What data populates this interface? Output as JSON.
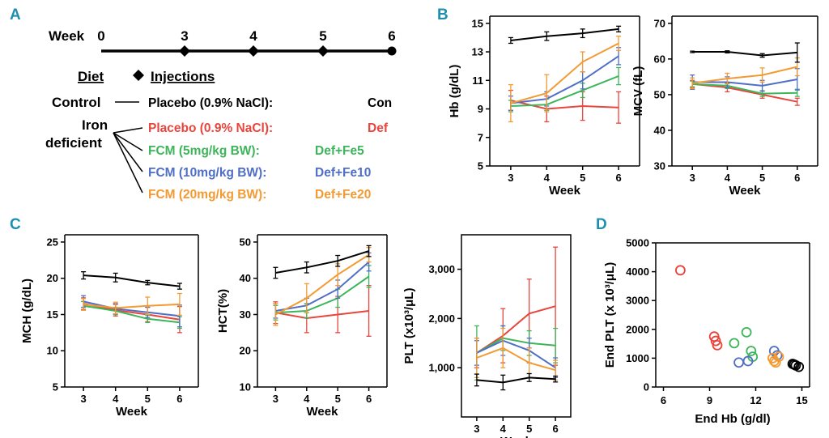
{
  "panel_labels": [
    "A",
    "B",
    "C",
    "D"
  ],
  "colors": {
    "Con": "#000000",
    "Def": "#e8453c",
    "Def+Fe5": "#3db55a",
    "Def+Fe10": "#4f6fc6",
    "Def+Fe20": "#f39a32",
    "accent": "#1f8fb0"
  },
  "timeline": {
    "week_label": "Week",
    "weeks": [
      "0",
      "3",
      "4",
      "5",
      "6"
    ],
    "diet_header": "Diet",
    "injections_header": "Injections",
    "control_label": "Control",
    "iron_label_line1": "Iron",
    "iron_label_line2": "deficient",
    "groups": [
      {
        "treatment": "Placebo (0.9% NaCl):",
        "code": "Con",
        "color": "#000000"
      },
      {
        "treatment": "Placebo (0.9% NaCl):",
        "code": "Def",
        "color": "#e8453c"
      },
      {
        "treatment": "FCM (5mg/kg BW):",
        "code": "Def+Fe5",
        "color": "#3db55a"
      },
      {
        "treatment": "FCM (10mg/kg BW):",
        "code": "Def+Fe10",
        "color": "#4f6fc6"
      },
      {
        "treatment": "FCM (20mg/kg BW):",
        "code": "Def+Fe20",
        "color": "#f39a32"
      }
    ]
  },
  "chart_data": [
    {
      "id": "hb",
      "panel": "B",
      "type": "line",
      "xlabel": "Week",
      "ylabel": "Hb (g/dL)",
      "x": [
        3,
        4,
        5,
        6
      ],
      "ylim": [
        5,
        15.5
      ],
      "yticks": [
        "5",
        "7",
        "9",
        "11",
        "13",
        "15"
      ],
      "series": [
        {
          "name": "Con",
          "values": [
            13.8,
            14.1,
            14.3,
            14.6
          ],
          "err": [
            0.2,
            0.3,
            0.3,
            0.2
          ]
        },
        {
          "name": "Def",
          "values": [
            9.6,
            9.0,
            9.2,
            9.1
          ],
          "err": [
            0.7,
            0.9,
            1.0,
            1.1
          ]
        },
        {
          "name": "Def+Fe5",
          "values": [
            9.2,
            9.3,
            10.3,
            11.3
          ],
          "err": [
            0.4,
            0.4,
            0.5,
            0.6
          ]
        },
        {
          "name": "Def+Fe10",
          "values": [
            9.4,
            9.7,
            11.0,
            12.7
          ],
          "err": [
            0.5,
            0.5,
            0.6,
            0.6
          ]
        },
        {
          "name": "Def+Fe20",
          "values": [
            9.4,
            10.1,
            12.3,
            13.6
          ],
          "err": [
            1.3,
            1.3,
            0.7,
            0.5
          ]
        }
      ]
    },
    {
      "id": "mcv",
      "panel": "B",
      "type": "line",
      "xlabel": "Week",
      "ylabel": "MCV (fL)",
      "x": [
        3,
        4,
        5,
        6
      ],
      "ylim": [
        30,
        72
      ],
      "yticks": [
        "30",
        "40",
        "50",
        "60",
        "70"
      ],
      "series": [
        {
          "name": "Con",
          "values": [
            62.0,
            62.0,
            61.0,
            61.8
          ],
          "err": [
            0.2,
            0.3,
            0.5,
            2.7
          ]
        },
        {
          "name": "Def",
          "values": [
            53.0,
            52.0,
            50.0,
            48.0
          ],
          "err": [
            1.0,
            1.2,
            1.0,
            1.0
          ]
        },
        {
          "name": "Def+Fe5",
          "values": [
            53.0,
            52.5,
            50.3,
            50.5
          ],
          "err": [
            0.8,
            0.8,
            0.8,
            1.0
          ]
        },
        {
          "name": "Def+Fe10",
          "values": [
            53.5,
            53.5,
            52.5,
            54.3
          ],
          "err": [
            2.0,
            1.5,
            1.5,
            3.0
          ]
        },
        {
          "name": "Def+Fe20",
          "values": [
            53.2,
            54.5,
            55.5,
            57.8
          ],
          "err": [
            1.5,
            1.5,
            2.0,
            2.5
          ]
        }
      ]
    },
    {
      "id": "mch",
      "panel": "C",
      "type": "line",
      "xlabel": "Week",
      "ylabel": "MCH (g/dL)",
      "x": [
        3,
        4,
        5,
        6
      ],
      "ylim": [
        5,
        26
      ],
      "yticks": [
        "5",
        "10",
        "15",
        "20",
        "25"
      ],
      "series": [
        {
          "name": "Con",
          "values": [
            20.4,
            20.1,
            19.4,
            18.9
          ],
          "err": [
            0.5,
            0.6,
            0.3,
            0.4
          ]
        },
        {
          "name": "Def",
          "values": [
            16.5,
            15.6,
            15.0,
            14.3
          ],
          "err": [
            0.8,
            0.8,
            1.0,
            1.8
          ]
        },
        {
          "name": "Def+Fe5",
          "values": [
            16.2,
            15.5,
            14.4,
            13.9
          ],
          "err": [
            0.6,
            0.5,
            0.5,
            0.8
          ]
        },
        {
          "name": "Def+Fe10",
          "values": [
            16.8,
            15.8,
            15.3,
            14.8
          ],
          "err": [
            0.8,
            0.7,
            0.7,
            1.5
          ]
        },
        {
          "name": "Def+Fe20",
          "values": [
            16.4,
            15.9,
            16.2,
            16.4
          ],
          "err": [
            0.8,
            0.8,
            1.2,
            1.5
          ]
        }
      ]
    },
    {
      "id": "hct",
      "panel": "C",
      "type": "line",
      "xlabel": "Week",
      "ylabel": "HCT(%)",
      "x": [
        3,
        4,
        5,
        6
      ],
      "ylim": [
        10,
        52
      ],
      "yticks": [
        "10",
        "20",
        "30",
        "40",
        "50"
      ],
      "series": [
        {
          "name": "Con",
          "values": [
            41.5,
            43.0,
            44.8,
            47.5
          ],
          "err": [
            1.5,
            1.5,
            1.5,
            1.5
          ]
        },
        {
          "name": "Def",
          "values": [
            30.5,
            29.0,
            30.0,
            31.0
          ],
          "err": [
            3.0,
            4.0,
            5.0,
            7.0
          ]
        },
        {
          "name": "Def+Fe5",
          "values": [
            30.5,
            31.0,
            34.5,
            40.5
          ],
          "err": [
            2.0,
            2.0,
            2.5,
            3.0
          ]
        },
        {
          "name": "Def+Fe10",
          "values": [
            31.0,
            32.5,
            37.0,
            44.5
          ],
          "err": [
            2.0,
            2.0,
            2.5,
            2.5
          ]
        },
        {
          "name": "Def+Fe20",
          "values": [
            30.0,
            34.5,
            41.0,
            46.5
          ],
          "err": [
            3.0,
            4.0,
            3.0,
            2.0
          ]
        }
      ]
    },
    {
      "id": "plt",
      "panel": "C",
      "type": "line",
      "xlabel": "Week",
      "ylabel": "PLT (x10³/μL)",
      "x": [
        3,
        4,
        5,
        6
      ],
      "ylim": [
        0,
        3700
      ],
      "yticks": [
        "1,000",
        "2,000",
        "3,000"
      ],
      "ytick_values": [
        1000,
        2000,
        3000
      ],
      "series": [
        {
          "name": "Con",
          "values": [
            750,
            700,
            800,
            770
          ],
          "err": [
            120,
            150,
            80,
            60
          ]
        },
        {
          "name": "Def",
          "values": [
            1300,
            1650,
            2100,
            2250
          ],
          "err": [
            300,
            550,
            700,
            1200
          ]
        },
        {
          "name": "Def+Fe5",
          "values": [
            1300,
            1600,
            1500,
            1450
          ],
          "err": [
            550,
            250,
            250,
            350
          ]
        },
        {
          "name": "Def+Fe10",
          "values": [
            1300,
            1550,
            1350,
            1000
          ],
          "err": [
            250,
            300,
            250,
            200
          ]
        },
        {
          "name": "Def+Fe20",
          "values": [
            1200,
            1400,
            1100,
            950
          ],
          "err": [
            400,
            400,
            300,
            200
          ]
        }
      ]
    },
    {
      "id": "scatter",
      "panel": "D",
      "type": "scatter",
      "xlabel": "End Hb (g/dl)",
      "ylabel": "End PLT (x 10³/μL)",
      "xlim": [
        5.5,
        15.5
      ],
      "ylim": [
        0,
        5000
      ],
      "xticks": [
        "6",
        "9",
        "12",
        "15"
      ],
      "xtick_values": [
        6,
        9,
        12,
        15
      ],
      "yticks": [
        "0",
        "1000",
        "2000",
        "3000",
        "4000",
        "5000"
      ],
      "ytick_values": [
        0,
        1000,
        2000,
        3000,
        4000,
        5000
      ],
      "series": [
        {
          "name": "Def",
          "points": [
            [
              7.1,
              4050
            ],
            [
              9.3,
              1750
            ],
            [
              9.4,
              1600
            ],
            [
              9.5,
              1450
            ]
          ]
        },
        {
          "name": "Def+Fe5",
          "points": [
            [
              10.6,
              1520
            ],
            [
              11.4,
              1900
            ],
            [
              11.7,
              1250
            ],
            [
              11.8,
              1050
            ]
          ]
        },
        {
          "name": "Def+Fe10",
          "points": [
            [
              10.9,
              850
            ],
            [
              11.5,
              900
            ],
            [
              13.2,
              1250
            ],
            [
              13.4,
              1100
            ]
          ]
        },
        {
          "name": "Def+Fe20",
          "points": [
            [
              13.1,
              1000
            ],
            [
              13.3,
              850
            ],
            [
              13.5,
              1050
            ],
            [
              13.2,
              900
            ]
          ]
        },
        {
          "name": "Con",
          "points": [
            [
              14.4,
              800
            ],
            [
              14.6,
              750
            ],
            [
              14.8,
              700
            ],
            [
              14.5,
              780
            ]
          ]
        }
      ]
    }
  ]
}
